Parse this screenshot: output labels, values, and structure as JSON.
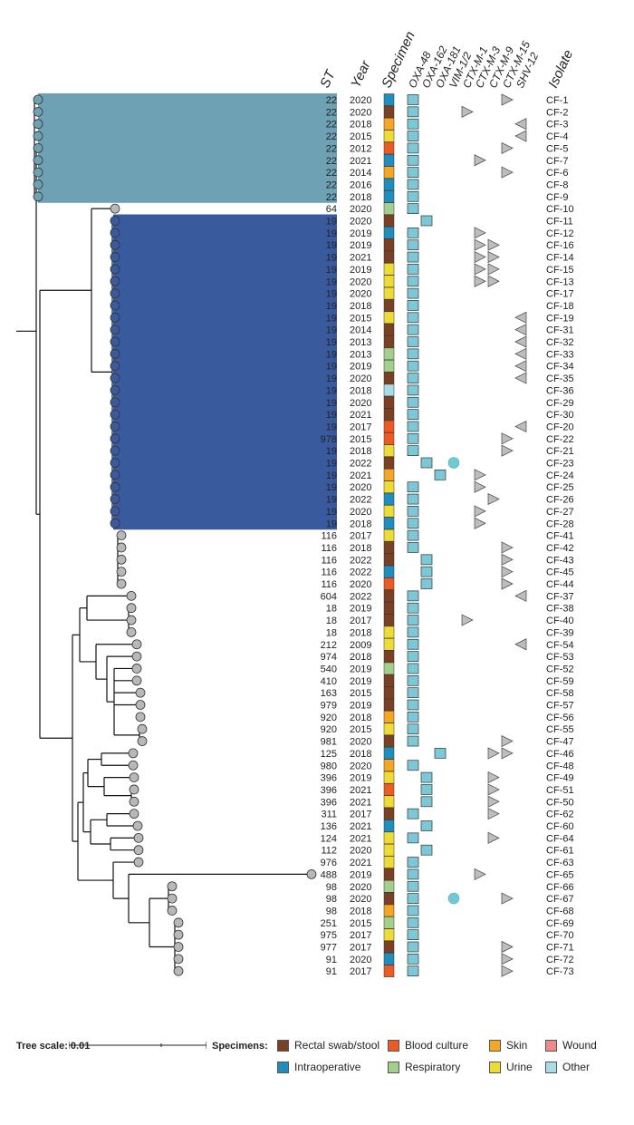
{
  "headers": {
    "st": "ST",
    "year": "Year",
    "specimen": "Specimen",
    "isolate": "Isolate",
    "genes": [
      "OXA-48",
      "OXA-162",
      "OXA-181",
      "VIM-1/2",
      "CTX-M-1",
      "CTX-M-3",
      "CTX-M-9",
      "CTX-M-15",
      "SHV-12"
    ]
  },
  "colors": {
    "Rectal": "#7b3f24",
    "Blood": "#ee5a24",
    "Skin": "#f5a623",
    "Wound": "#ef8a8a",
    "Intraop": "#1f8ebf",
    "Resp": "#a4cf8a",
    "Urine": "#eedc35",
    "Other": "#a9dbe8",
    "gene_box": "#7cc8d6",
    "vim_circle": "#6ecad4",
    "clade1": "#6fa1b4",
    "clade2": "#3a5a9e"
  },
  "isolates": [
    {
      "id": "CF-1",
      "st": "22",
      "year": "2020",
      "spec": "Intraop",
      "genes": [
        1,
        0,
        0,
        0,
        0,
        0,
        0,
        1,
        0
      ]
    },
    {
      "id": "CF-2",
      "st": "22",
      "year": "2020",
      "spec": "Rectal",
      "genes": [
        1,
        0,
        0,
        0,
        1,
        0,
        0,
        0,
        0
      ]
    },
    {
      "id": "CF-3",
      "st": "22",
      "year": "2018",
      "spec": "Skin",
      "genes": [
        1,
        0,
        0,
        0,
        0,
        0,
        0,
        0,
        1
      ]
    },
    {
      "id": "CF-4",
      "st": "22",
      "year": "2015",
      "spec": "Urine",
      "genes": [
        1,
        0,
        0,
        0,
        0,
        0,
        0,
        0,
        1
      ]
    },
    {
      "id": "CF-5",
      "st": "22",
      "year": "2012",
      "spec": "Blood",
      "genes": [
        1,
        0,
        0,
        0,
        0,
        0,
        0,
        1,
        0
      ]
    },
    {
      "id": "CF-7",
      "st": "22",
      "year": "2021",
      "spec": "Intraop",
      "genes": [
        1,
        0,
        0,
        0,
        0,
        1,
        0,
        0,
        0
      ]
    },
    {
      "id": "CF-6",
      "st": "22",
      "year": "2014",
      "spec": "Skin",
      "genes": [
        1,
        0,
        0,
        0,
        0,
        0,
        0,
        1,
        0
      ]
    },
    {
      "id": "CF-8",
      "st": "22",
      "year": "2016",
      "spec": "Intraop",
      "genes": [
        1,
        0,
        0,
        0,
        0,
        0,
        0,
        0,
        0
      ]
    },
    {
      "id": "CF-9",
      "st": "22",
      "year": "2018",
      "spec": "Intraop",
      "genes": [
        1,
        0,
        0,
        0,
        0,
        0,
        0,
        0,
        0
      ]
    },
    {
      "id": "CF-10",
      "st": "64",
      "year": "2020",
      "spec": "Resp",
      "genes": [
        1,
        0,
        0,
        0,
        0,
        0,
        0,
        0,
        0
      ]
    },
    {
      "id": "CF-11",
      "st": "19",
      "year": "2020",
      "spec": "Rectal",
      "genes": [
        0,
        1,
        0,
        0,
        0,
        0,
        0,
        0,
        0
      ]
    },
    {
      "id": "CF-12",
      "st": "19",
      "year": "2019",
      "spec": "Intraop",
      "genes": [
        1,
        0,
        0,
        0,
        0,
        1,
        0,
        0,
        0
      ]
    },
    {
      "id": "CF-16",
      "st": "19",
      "year": "2019",
      "spec": "Rectal",
      "genes": [
        1,
        0,
        0,
        0,
        0,
        1,
        1,
        0,
        0
      ]
    },
    {
      "id": "CF-14",
      "st": "19",
      "year": "2021",
      "spec": "Rectal",
      "genes": [
        1,
        0,
        0,
        0,
        0,
        1,
        1,
        0,
        0
      ]
    },
    {
      "id": "CF-15",
      "st": "19",
      "year": "2019",
      "spec": "Urine",
      "genes": [
        1,
        0,
        0,
        0,
        0,
        1,
        1,
        0,
        0
      ]
    },
    {
      "id": "CF-13",
      "st": "19",
      "year": "2020",
      "spec": "Urine",
      "genes": [
        1,
        0,
        0,
        0,
        0,
        1,
        1,
        0,
        0
      ]
    },
    {
      "id": "CF-17",
      "st": "19",
      "year": "2020",
      "spec": "Urine",
      "genes": [
        1,
        0,
        0,
        0,
        0,
        0,
        0,
        0,
        0
      ]
    },
    {
      "id": "CF-18",
      "st": "19",
      "year": "2018",
      "spec": "Rectal",
      "genes": [
        1,
        0,
        0,
        0,
        0,
        0,
        0,
        0,
        0
      ]
    },
    {
      "id": "CF-19",
      "st": "19",
      "year": "2015",
      "spec": "Urine",
      "genes": [
        1,
        0,
        0,
        0,
        0,
        0,
        0,
        0,
        1
      ]
    },
    {
      "id": "CF-31",
      "st": "19",
      "year": "2014",
      "spec": "Rectal",
      "genes": [
        1,
        0,
        0,
        0,
        0,
        0,
        0,
        0,
        1
      ]
    },
    {
      "id": "CF-32",
      "st": "19",
      "year": "2013",
      "spec": "Rectal",
      "genes": [
        1,
        0,
        0,
        0,
        0,
        0,
        0,
        0,
        1
      ]
    },
    {
      "id": "CF-33",
      "st": "19",
      "year": "2013",
      "spec": "Resp",
      "genes": [
        1,
        0,
        0,
        0,
        0,
        0,
        0,
        0,
        1
      ]
    },
    {
      "id": "CF-34",
      "st": "19",
      "year": "2019",
      "spec": "Resp",
      "genes": [
        1,
        0,
        0,
        0,
        0,
        0,
        0,
        0,
        1
      ]
    },
    {
      "id": "CF-35",
      "st": "19",
      "year": "2020",
      "spec": "Rectal",
      "genes": [
        1,
        0,
        0,
        0,
        0,
        0,
        0,
        0,
        1
      ]
    },
    {
      "id": "CF-36",
      "st": "19",
      "year": "2018",
      "spec": "Other",
      "genes": [
        1,
        0,
        0,
        0,
        0,
        0,
        0,
        0,
        0
      ]
    },
    {
      "id": "CF-29",
      "st": "19",
      "year": "2020",
      "spec": "Rectal",
      "genes": [
        1,
        0,
        0,
        0,
        0,
        0,
        0,
        0,
        0
      ]
    },
    {
      "id": "CF-30",
      "st": "19",
      "year": "2021",
      "spec": "Rectal",
      "genes": [
        1,
        0,
        0,
        0,
        0,
        0,
        0,
        0,
        0
      ]
    },
    {
      "id": "CF-20",
      "st": "19",
      "year": "2017",
      "spec": "Blood",
      "genes": [
        1,
        0,
        0,
        0,
        0,
        0,
        0,
        0,
        1
      ]
    },
    {
      "id": "CF-22",
      "st": "978",
      "year": "2015",
      "spec": "Blood",
      "genes": [
        1,
        0,
        0,
        0,
        0,
        0,
        0,
        1,
        0
      ]
    },
    {
      "id": "CF-21",
      "st": "19",
      "year": "2018",
      "spec": "Urine",
      "genes": [
        1,
        0,
        0,
        0,
        0,
        0,
        0,
        1,
        0
      ]
    },
    {
      "id": "CF-23",
      "st": "19",
      "year": "2022",
      "spec": "Rectal",
      "genes": [
        0,
        1,
        0,
        2,
        0,
        0,
        0,
        0,
        0
      ]
    },
    {
      "id": "CF-24",
      "st": "19",
      "year": "2021",
      "spec": "Skin",
      "genes": [
        0,
        0,
        1,
        0,
        0,
        1,
        0,
        0,
        0
      ]
    },
    {
      "id": "CF-25",
      "st": "19",
      "year": "2020",
      "spec": "Urine",
      "genes": [
        1,
        0,
        0,
        0,
        0,
        1,
        0,
        0,
        0
      ]
    },
    {
      "id": "CF-26",
      "st": "19",
      "year": "2022",
      "spec": "Intraop",
      "genes": [
        1,
        0,
        0,
        0,
        0,
        0,
        1,
        0,
        0
      ]
    },
    {
      "id": "CF-27",
      "st": "19",
      "year": "2020",
      "spec": "Urine",
      "genes": [
        1,
        0,
        0,
        0,
        0,
        1,
        0,
        0,
        0
      ]
    },
    {
      "id": "CF-28",
      "st": "19",
      "year": "2018",
      "spec": "Intraop",
      "genes": [
        1,
        0,
        0,
        0,
        0,
        1,
        0,
        0,
        0
      ]
    },
    {
      "id": "CF-41",
      "st": "116",
      "year": "2017",
      "spec": "Urine",
      "genes": [
        1,
        0,
        0,
        0,
        0,
        0,
        0,
        0,
        0
      ]
    },
    {
      "id": "CF-42",
      "st": "116",
      "year": "2018",
      "spec": "Rectal",
      "genes": [
        1,
        0,
        0,
        0,
        0,
        0,
        0,
        1,
        0
      ]
    },
    {
      "id": "CF-43",
      "st": "116",
      "year": "2022",
      "spec": "Rectal",
      "genes": [
        0,
        1,
        0,
        0,
        0,
        0,
        0,
        1,
        0
      ]
    },
    {
      "id": "CF-45",
      "st": "116",
      "year": "2022",
      "spec": "Intraop",
      "genes": [
        0,
        1,
        0,
        0,
        0,
        0,
        0,
        1,
        0
      ]
    },
    {
      "id": "CF-44",
      "st": "116",
      "year": "2020",
      "spec": "Blood",
      "genes": [
        0,
        1,
        0,
        0,
        0,
        0,
        0,
        1,
        0
      ]
    },
    {
      "id": "CF-37",
      "st": "604",
      "year": "2022",
      "spec": "Rectal",
      "genes": [
        1,
        0,
        0,
        0,
        0,
        0,
        0,
        0,
        1
      ]
    },
    {
      "id": "CF-38",
      "st": "18",
      "year": "2019",
      "spec": "Rectal",
      "genes": [
        1,
        0,
        0,
        0,
        0,
        0,
        0,
        0,
        0
      ]
    },
    {
      "id": "CF-40",
      "st": "18",
      "year": "2017",
      "spec": "Rectal",
      "genes": [
        1,
        0,
        0,
        0,
        1,
        0,
        0,
        0,
        0
      ]
    },
    {
      "id": "CF-39",
      "st": "18",
      "year": "2018",
      "spec": "Urine",
      "genes": [
        1,
        0,
        0,
        0,
        0,
        0,
        0,
        0,
        0
      ]
    },
    {
      "id": "CF-54",
      "st": "212",
      "year": "2009",
      "spec": "Urine",
      "genes": [
        1,
        0,
        0,
        0,
        0,
        0,
        0,
        0,
        1
      ]
    },
    {
      "id": "CF-53",
      "st": "974",
      "year": "2018",
      "spec": "Rectal",
      "genes": [
        1,
        0,
        0,
        0,
        0,
        0,
        0,
        0,
        0
      ]
    },
    {
      "id": "CF-52",
      "st": "540",
      "year": "2019",
      "spec": "Resp",
      "genes": [
        1,
        0,
        0,
        0,
        0,
        0,
        0,
        0,
        0
      ]
    },
    {
      "id": "CF-59",
      "st": "410",
      "year": "2019",
      "spec": "Rectal",
      "genes": [
        1,
        0,
        0,
        0,
        0,
        0,
        0,
        0,
        0
      ]
    },
    {
      "id": "CF-58",
      "st": "163",
      "year": "2015",
      "spec": "Rectal",
      "genes": [
        1,
        0,
        0,
        0,
        0,
        0,
        0,
        0,
        0
      ]
    },
    {
      "id": "CF-57",
      "st": "979",
      "year": "2019",
      "spec": "Rectal",
      "genes": [
        1,
        0,
        0,
        0,
        0,
        0,
        0,
        0,
        0
      ]
    },
    {
      "id": "CF-56",
      "st": "920",
      "year": "2018",
      "spec": "Skin",
      "genes": [
        1,
        0,
        0,
        0,
        0,
        0,
        0,
        0,
        0
      ]
    },
    {
      "id": "CF-55",
      "st": "920",
      "year": "2015",
      "spec": "Urine",
      "genes": [
        1,
        0,
        0,
        0,
        0,
        0,
        0,
        0,
        0
      ]
    },
    {
      "id": "CF-47",
      "st": "981",
      "year": "2020",
      "spec": "Rectal",
      "genes": [
        1,
        0,
        0,
        0,
        0,
        0,
        0,
        1,
        0
      ]
    },
    {
      "id": "CF-46",
      "st": "125",
      "year": "2018",
      "spec": "Intraop",
      "genes": [
        0,
        0,
        1,
        0,
        0,
        0,
        1,
        1,
        0
      ]
    },
    {
      "id": "CF-48",
      "st": "980",
      "year": "2020",
      "spec": "Skin",
      "genes": [
        1,
        0,
        0,
        0,
        0,
        0,
        0,
        0,
        0
      ]
    },
    {
      "id": "CF-49",
      "st": "396",
      "year": "2019",
      "spec": "Urine",
      "genes": [
        0,
        1,
        0,
        0,
        0,
        0,
        1,
        0,
        0
      ]
    },
    {
      "id": "CF-51",
      "st": "396",
      "year": "2021",
      "spec": "Blood",
      "genes": [
        0,
        1,
        0,
        0,
        0,
        0,
        1,
        0,
        0
      ]
    },
    {
      "id": "CF-50",
      "st": "396",
      "year": "2021",
      "spec": "Urine",
      "genes": [
        0,
        1,
        0,
        0,
        0,
        0,
        1,
        0,
        0
      ]
    },
    {
      "id": "CF-62",
      "st": "311",
      "year": "2017",
      "spec": "Rectal",
      "genes": [
        1,
        0,
        0,
        0,
        0,
        0,
        1,
        0,
        0
      ]
    },
    {
      "id": "CF-60",
      "st": "136",
      "year": "2021",
      "spec": "Intraop",
      "genes": [
        0,
        1,
        0,
        0,
        0,
        0,
        0,
        0,
        0
      ]
    },
    {
      "id": "CF-64",
      "st": "124",
      "year": "2021",
      "spec": "Urine",
      "genes": [
        1,
        0,
        0,
        0,
        0,
        0,
        1,
        0,
        0
      ]
    },
    {
      "id": "CF-61",
      "st": "112",
      "year": "2020",
      "spec": "Urine",
      "genes": [
        0,
        1,
        0,
        0,
        0,
        0,
        0,
        0,
        0
      ]
    },
    {
      "id": "CF-63",
      "st": "976",
      "year": "2021",
      "spec": "Urine",
      "genes": [
        1,
        0,
        0,
        0,
        0,
        0,
        0,
        0,
        0
      ]
    },
    {
      "id": "CF-65",
      "st": "488",
      "year": "2019",
      "spec": "Rectal",
      "genes": [
        1,
        0,
        0,
        0,
        0,
        1,
        0,
        0,
        0
      ]
    },
    {
      "id": "CF-66",
      "st": "98",
      "year": "2020",
      "spec": "Resp",
      "genes": [
        1,
        0,
        0,
        0,
        0,
        0,
        0,
        0,
        0
      ]
    },
    {
      "id": "CF-67",
      "st": "98",
      "year": "2020",
      "spec": "Rectal",
      "genes": [
        1,
        0,
        0,
        2,
        0,
        0,
        0,
        1,
        0
      ]
    },
    {
      "id": "CF-68",
      "st": "98",
      "year": "2018",
      "spec": "Skin",
      "genes": [
        1,
        0,
        0,
        0,
        0,
        0,
        0,
        0,
        0
      ]
    },
    {
      "id": "CF-69",
      "st": "251",
      "year": "2015",
      "spec": "Resp",
      "genes": [
        1,
        0,
        0,
        0,
        0,
        0,
        0,
        0,
        0
      ]
    },
    {
      "id": "CF-70",
      "st": "975",
      "year": "2017",
      "spec": "Urine",
      "genes": [
        1,
        0,
        0,
        0,
        0,
        0,
        0,
        0,
        0
      ]
    },
    {
      "id": "CF-71",
      "st": "977",
      "year": "2017",
      "spec": "Rectal",
      "genes": [
        1,
        0,
        0,
        0,
        0,
        0,
        0,
        1,
        0
      ]
    },
    {
      "id": "CF-72",
      "st": "91",
      "year": "2020",
      "spec": "Intraop",
      "genes": [
        1,
        0,
        0,
        0,
        0,
        0,
        0,
        1,
        0
      ]
    },
    {
      "id": "CF-73",
      "st": "91",
      "year": "2017",
      "spec": "Blood",
      "genes": [
        1,
        0,
        0,
        0,
        0,
        0,
        0,
        1,
        0
      ]
    }
  ],
  "legend": {
    "tree_scale_label": "Tree scale: 0.01",
    "specimens_label": "Specimens:",
    "items": [
      {
        "key": "Rectal",
        "label": "Rectal swab/stool"
      },
      {
        "key": "Blood",
        "label": "Blood culture"
      },
      {
        "key": "Skin",
        "label": "Skin"
      },
      {
        "key": "Wound",
        "label": "Wound"
      },
      {
        "key": "Intraop",
        "label": "Intraoperative"
      },
      {
        "key": "Resp",
        "label": "Respiratory"
      },
      {
        "key": "Urine",
        "label": "Urine"
      },
      {
        "key": "Other",
        "label": "Other"
      }
    ]
  }
}
